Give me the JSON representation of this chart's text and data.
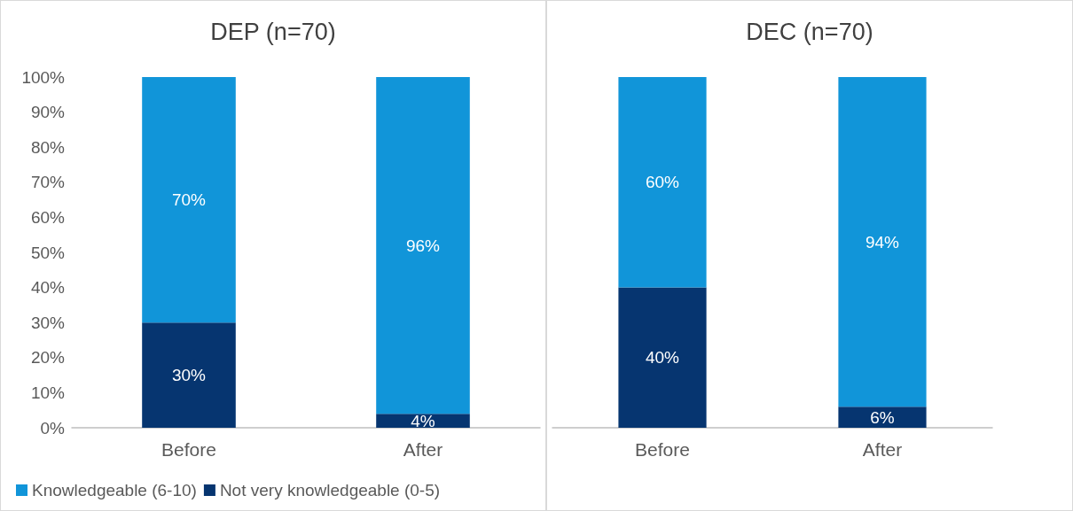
{
  "chart_data": [
    {
      "type": "bar",
      "title": "DEP (n=70)",
      "categories": [
        "Before",
        "After"
      ],
      "stacked": true,
      "legend": "bottom left",
      "grid": false,
      "ylim": [
        0,
        100
      ],
      "yticks": [
        {
          "value": 0,
          "label": "0%"
        },
        {
          "value": 10,
          "label": "10%"
        },
        {
          "value": 20,
          "label": "20%"
        },
        {
          "value": 30,
          "label": "30%"
        },
        {
          "value": 40,
          "label": "40%"
        },
        {
          "value": 50,
          "label": "50%"
        },
        {
          "value": 60,
          "label": "60%"
        },
        {
          "value": 70,
          "label": "70%"
        },
        {
          "value": 80,
          "label": "80%"
        },
        {
          "value": 90,
          "label": "90%"
        },
        {
          "value": 100,
          "label": "100%"
        }
      ],
      "series": [
        {
          "name": "Not very knowledgeable (0-5)",
          "color": "#063570",
          "values": [
            30,
            4
          ],
          "value_labels": [
            "30%",
            "4%"
          ]
        },
        {
          "name": "Knowledgeable (6-10)",
          "color": "#1195d9",
          "values": [
            70,
            96
          ],
          "value_labels": [
            "70%",
            "96%"
          ]
        }
      ]
    },
    {
      "type": "bar",
      "title": "DEC (n=70)",
      "categories": [
        "Before",
        "After"
      ],
      "stacked": true,
      "grid": false,
      "tick_labels": "x",
      "ylim": [
        0,
        100
      ],
      "series": [
        {
          "color": "#063570",
          "values": [
            40,
            6
          ],
          "value_labels": [
            "40%",
            "6%"
          ]
        },
        {
          "color": "#1195d9",
          "values": [
            60,
            94
          ],
          "value_labels": [
            "60%",
            "94%"
          ]
        }
      ]
    }
  ]
}
